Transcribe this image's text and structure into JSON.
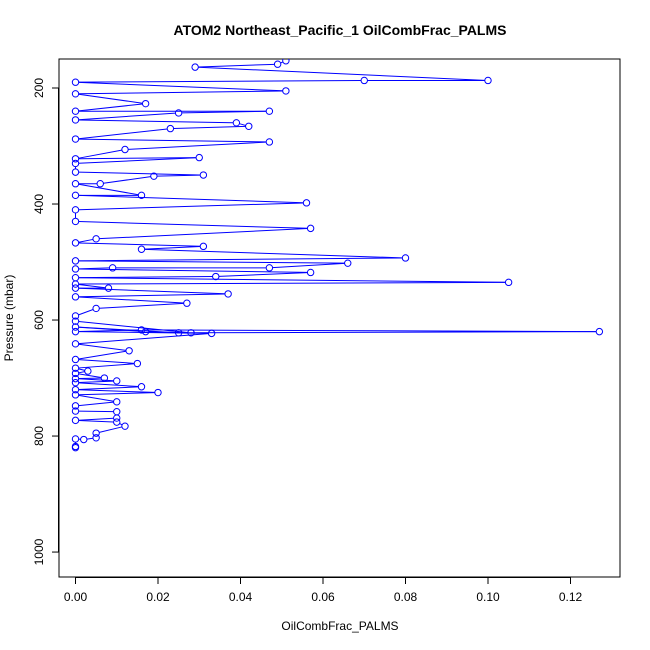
{
  "chart_data": {
    "type": "line",
    "title": "ATOM2 Northeast_Pacific_1 OilCombFrac_PALMS",
    "xlabel": "OilCombFrac_PALMS",
    "ylabel": "Pressure (mbar)",
    "xlim": [
      -0.004,
      0.132
    ],
    "ylim": [
      1043,
      150
    ],
    "y_reversed": true,
    "x_ticks": [
      0.0,
      0.02,
      0.04,
      0.06,
      0.08,
      0.1,
      0.12
    ],
    "x_tick_labels": [
      "0.00",
      "0.02",
      "0.04",
      "0.06",
      "0.08",
      "0.10",
      "0.12"
    ],
    "y_ticks": [
      200,
      400,
      600,
      800,
      1000
    ],
    "y_tick_labels": [
      "200",
      "400",
      "600",
      "800",
      "1000"
    ],
    "grid": false,
    "series": [
      {
        "color": "#0000ff",
        "marker": "open-circle",
        "points": [
          [
            0.0,
            818
          ],
          [
            0.0,
            820
          ],
          [
            0.0,
            805
          ],
          [
            0.002,
            806
          ],
          [
            0.005,
            803
          ],
          [
            0.005,
            795
          ],
          [
            0.012,
            783
          ],
          [
            0.01,
            776
          ],
          [
            0.0,
            773
          ],
          [
            0.01,
            769
          ],
          [
            0.01,
            758
          ],
          [
            0.0,
            757
          ],
          [
            0.0,
            748
          ],
          [
            0.01,
            741
          ],
          [
            0.0,
            729
          ],
          [
            0.02,
            725
          ],
          [
            0.0,
            720
          ],
          [
            0.016,
            715
          ],
          [
            0.0,
            708
          ],
          [
            0.01,
            705
          ],
          [
            0.0,
            701
          ],
          [
            0.007,
            700
          ],
          [
            0.0,
            692
          ],
          [
            0.003,
            688
          ],
          [
            0.0,
            683
          ],
          [
            0.015,
            675
          ],
          [
            0.0,
            668
          ],
          [
            0.013,
            653
          ],
          [
            0.0,
            641
          ],
          [
            0.033,
            623
          ],
          [
            0.0,
            620
          ],
          [
            0.016,
            617
          ],
          [
            0.127,
            620
          ],
          [
            0.025,
            622
          ],
          [
            0.0,
            612
          ],
          [
            0.017,
            620
          ],
          [
            0.028,
            622
          ],
          [
            0.0,
            602
          ],
          [
            0.0,
            593
          ],
          [
            0.005,
            580
          ],
          [
            0.027,
            571
          ],
          [
            0.0,
            560
          ],
          [
            0.037,
            555
          ],
          [
            0.0,
            545
          ],
          [
            0.008,
            545
          ],
          [
            0.0,
            538
          ],
          [
            0.105,
            535
          ],
          [
            0.0,
            527
          ],
          [
            0.034,
            525
          ],
          [
            0.057,
            518
          ],
          [
            0.0,
            512
          ],
          [
            0.009,
            510
          ],
          [
            0.047,
            510
          ],
          [
            0.066,
            502
          ],
          [
            0.0,
            498
          ],
          [
            0.08,
            493
          ],
          [
            0.016,
            478
          ],
          [
            0.031,
            473
          ],
          [
            0.0,
            467
          ],
          [
            0.005,
            460
          ],
          [
            0.057,
            442
          ],
          [
            0.0,
            430
          ],
          [
            0.0,
            410
          ],
          [
            0.056,
            398
          ],
          [
            0.0,
            385
          ],
          [
            0.016,
            385
          ],
          [
            0.0,
            365
          ],
          [
            0.006,
            365
          ],
          [
            0.019,
            352
          ],
          [
            0.031,
            350
          ],
          [
            0.0,
            345
          ],
          [
            0.0,
            330
          ],
          [
            0.03,
            320
          ],
          [
            0.0,
            322
          ],
          [
            0.012,
            306
          ],
          [
            0.047,
            293
          ],
          [
            0.0,
            288
          ],
          [
            0.023,
            270
          ],
          [
            0.042,
            266
          ],
          [
            0.039,
            260
          ],
          [
            0.0,
            255
          ],
          [
            0.025,
            243
          ],
          [
            0.047,
            240
          ],
          [
            0.0,
            240
          ],
          [
            0.017,
            227
          ],
          [
            0.0,
            210
          ],
          [
            0.051,
            205
          ],
          [
            0.0,
            190
          ],
          [
            0.07,
            187
          ],
          [
            0.1,
            187
          ],
          [
            0.029,
            164
          ],
          [
            0.049,
            159
          ],
          [
            0.051,
            153
          ]
        ]
      }
    ]
  }
}
